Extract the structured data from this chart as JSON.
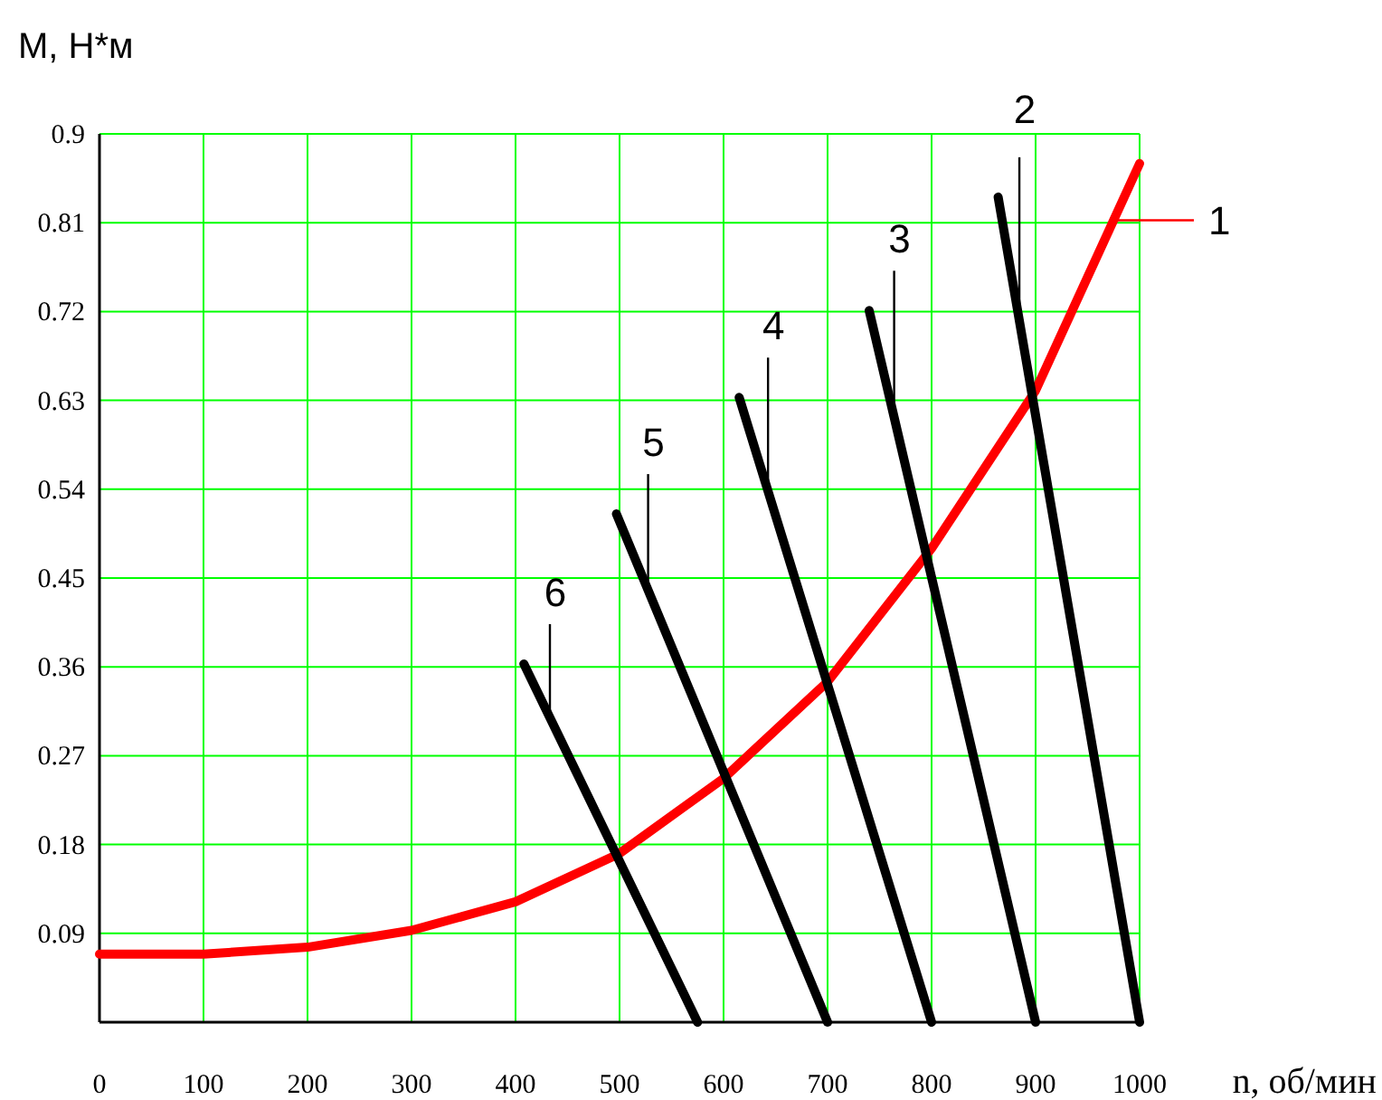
{
  "chart_data": {
    "type": "line",
    "xlabel": "n, об/мин",
    "ylabel": "М, Н*м",
    "xlim": [
      0,
      1000
    ],
    "ylim": [
      0,
      0.9
    ],
    "xticks": [
      0,
      100,
      200,
      300,
      400,
      500,
      600,
      700,
      800,
      900,
      1000
    ],
    "yticks": [
      0.09,
      0.18,
      0.27,
      0.36,
      0.45,
      0.54,
      0.63,
      0.72,
      0.81,
      0.9
    ],
    "grid": true,
    "legend": "right",
    "marker": "none",
    "line_style": "solid",
    "series": [
      {
        "name": "1",
        "color": "#ff0000",
        "x": [
          0,
          100,
          200,
          300,
          400,
          500,
          600,
          700,
          800,
          900,
          1000
        ],
        "values": [
          0.069,
          0.069,
          0.076,
          0.093,
          0.122,
          0.171,
          0.247,
          0.345,
          0.48,
          0.64,
          0.87
        ]
      },
      {
        "name": "2",
        "color": "#000000",
        "x": [
          864,
          1000
        ],
        "values": [
          0.836,
          0
        ]
      },
      {
        "name": "3",
        "color": "#000000",
        "x": [
          740,
          900
        ],
        "values": [
          0.721,
          0
        ]
      },
      {
        "name": "4",
        "color": "#000000",
        "x": [
          615,
          800
        ],
        "values": [
          0.633,
          0
        ]
      },
      {
        "name": "5",
        "color": "#000000",
        "x": [
          497,
          700
        ],
        "values": [
          0.515,
          0
        ]
      },
      {
        "name": "6",
        "color": "#000000",
        "x": [
          408,
          575
        ],
        "values": [
          0.363,
          0
        ]
      }
    ]
  }
}
